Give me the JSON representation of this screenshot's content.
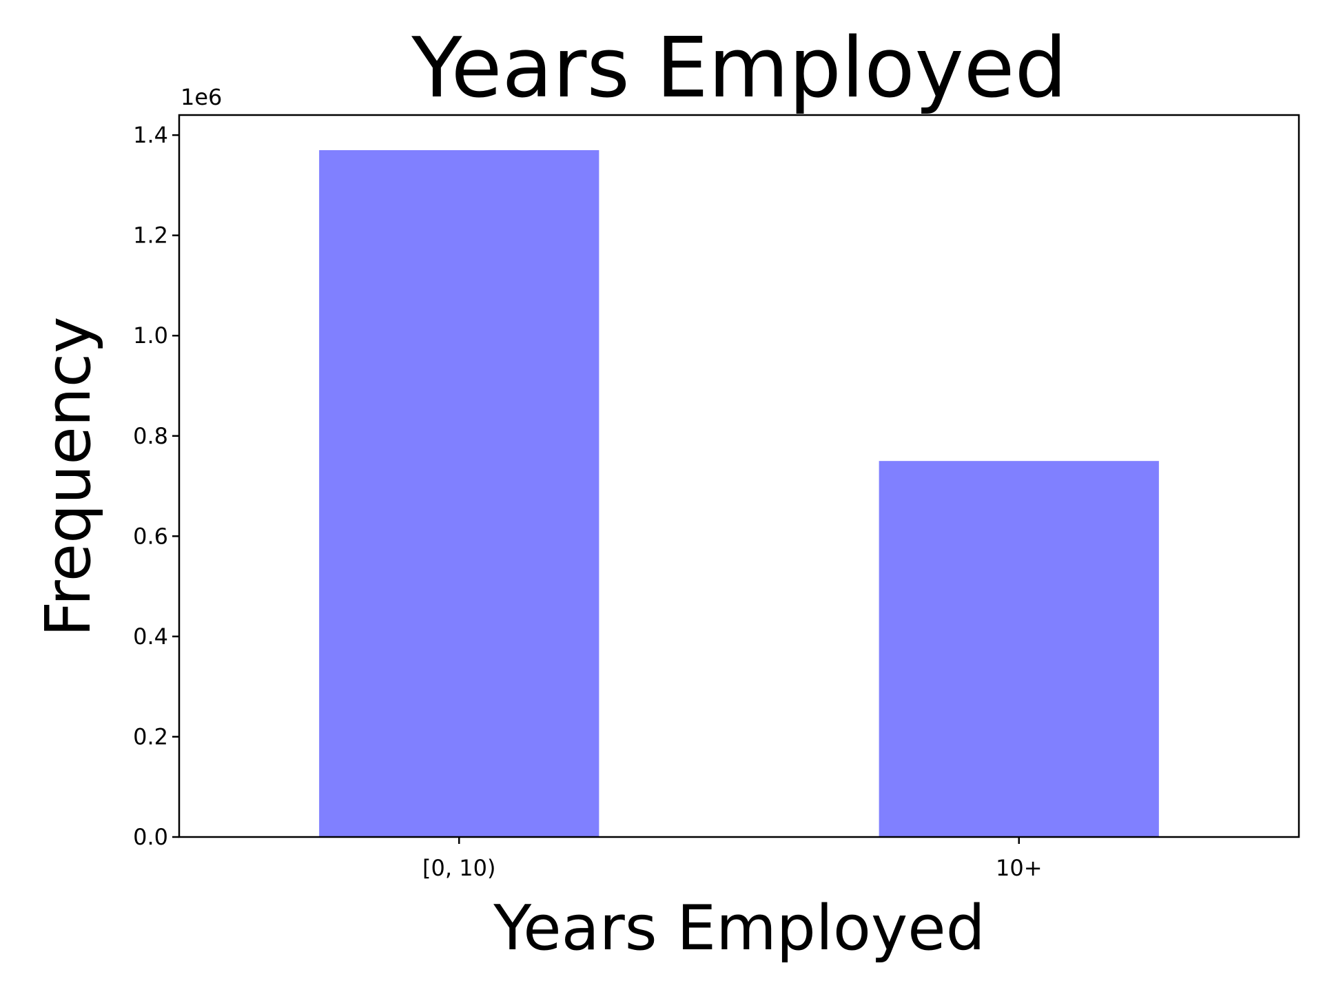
{
  "chart_data": {
    "type": "bar",
    "title": "Years Employed",
    "xlabel": "Years Employed",
    "ylabel": "Frequency",
    "categories": [
      "[0, 10)",
      "10+"
    ],
    "values": [
      1370000,
      750000
    ],
    "ylim": [
      0,
      1440000
    ],
    "y_offset_label": "1e6",
    "y_scale_factor": 1000000,
    "yticks": [
      0.0,
      0.2,
      0.4,
      0.6,
      0.8,
      1.0,
      1.2,
      1.4
    ],
    "ytick_labels": [
      "0.0",
      "0.2",
      "0.4",
      "0.6",
      "0.8",
      "1.0",
      "1.2",
      "1.4"
    ],
    "grid": false,
    "legend": "none",
    "bar_color": "#8080ff"
  }
}
